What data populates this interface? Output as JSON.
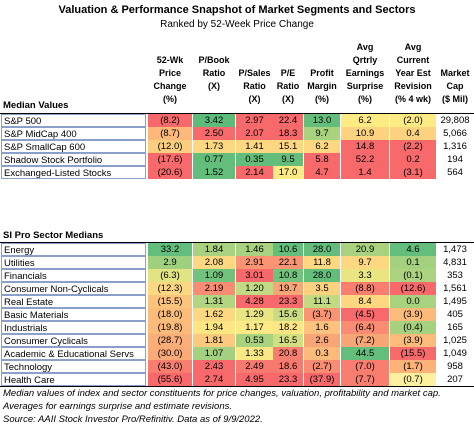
{
  "title": "Valuation & Performance Snapshot of Market Segments and Sectors",
  "subtitle": "Ranked by 52-Week Price Change",
  "chart_data": {
    "type": "table",
    "columns": [
      "52-Wk Price Change (%)",
      "P/Book Ratio (X)",
      "P/Sales Ratio (X)",
      "P/E Ratio (X)",
      "Profit Margin (%)",
      "Avg Qtrly Earnings Surprise (%)",
      "Avg Current Year Est Revision (% 4 wk)",
      "Market Cap ($ Mil)"
    ],
    "sections": [
      {
        "label": "Median Values",
        "rows": [
          {
            "name": "S&P 500",
            "values": [
              "(8.2)",
              "3.42",
              "2.97",
              "22.4",
              "13.0",
              "6.2",
              "(2.0)",
              "29,808"
            ]
          },
          {
            "name": "S&P MidCap 400",
            "values": [
              "(8.7)",
              "2.50",
              "2.07",
              "18.3",
              "9.7",
              "10.9",
              "0.4",
              "5,066"
            ]
          },
          {
            "name": "S&P SmallCap 600",
            "values": [
              "(12.0)",
              "1.73",
              "1.41",
              "15.1",
              "6.2",
              "14.8",
              "(2.2)",
              "1,316"
            ]
          },
          {
            "name": "Shadow Stock Portfolio",
            "values": [
              "(17.6)",
              "0.77",
              "0.35",
              "9.5",
              "5.8",
              "52.2",
              "0.2",
              "194"
            ]
          },
          {
            "name": "Exchanged-Listed Stocks",
            "values": [
              "(20.6)",
              "1.52",
              "2.14",
              "17.0",
              "4.7",
              "1.4",
              "(3.1)",
              "564"
            ]
          }
        ]
      },
      {
        "label": "SI Pro Sector Medians",
        "rows": [
          {
            "name": "Energy",
            "values": [
              "33.2",
              "1.84",
              "1.46",
              "10.6",
              "28.0",
              "20.9",
              "4.6",
              "1,473"
            ]
          },
          {
            "name": "Utilities",
            "values": [
              "2.9",
              "2.08",
              "2.91",
              "22.1",
              "11.8",
              "9.7",
              "0.1",
              "4,831"
            ]
          },
          {
            "name": "Financials",
            "values": [
              "(6.3)",
              "1.09",
              "3.01",
              "10.8",
              "28.0",
              "3.3",
              "(0.1)",
              "353"
            ]
          },
          {
            "name": "Consumer Non-Cyclicals",
            "values": [
              "(12.3)",
              "2.19",
              "1.20",
              "19.7",
              "3.5",
              "(8.8)",
              "(12.6)",
              "1,561"
            ]
          },
          {
            "name": "Real Estate",
            "values": [
              "(15.5)",
              "1.31",
              "4.28",
              "23.3",
              "11.1",
              "8.4",
              "0.0",
              "1,495"
            ]
          },
          {
            "name": "Basic Materials",
            "values": [
              "(18.0)",
              "1.62",
              "1.29",
              "15.6",
              "(3.7)",
              "(4.5)",
              "(3.9)",
              "405"
            ]
          },
          {
            "name": "Industrials",
            "values": [
              "(19.8)",
              "1.94",
              "1.17",
              "18.2",
              "1.6",
              "(6.4)",
              "(0.4)",
              "165"
            ]
          },
          {
            "name": "Consumer Cyclicals",
            "values": [
              "(28.7)",
              "1.81",
              "0.53",
              "16.5",
              "2.6",
              "(7.2)",
              "(3.9)",
              "1,025"
            ]
          },
          {
            "name": "Academic & Educational Servs",
            "values": [
              "(30.0)",
              "1.07",
              "1.33",
              "20.8",
              "0.3",
              "44.5",
              "(15.5)",
              "1,049"
            ]
          },
          {
            "name": "Technology",
            "values": [
              "(43.0)",
              "2.43",
              "2.49",
              "18.6",
              "(2.7)",
              "(7.0)",
              "(1.7)",
              "958"
            ]
          },
          {
            "name": "Health Care",
            "values": [
              "(55.6)",
              "2.74",
              "4.95",
              "23.3",
              "(37.9)",
              "(7.7)",
              "(0.7)",
              "207"
            ]
          }
        ]
      }
    ]
  },
  "headers": [
    "52-Wk\nPrice\nChange\n(%)",
    "P/Book\nRatio\n(X)",
    "P/Sales\nRatio\n(X)",
    "P/E\nRatio\n(X)",
    "Profit\nMargin\n(%)",
    "Avg\nQrtrly\nEarnings\nSurprise\n(%)",
    "Avg\nCurrent\nYear Est\nRevision\n(% 4 wk)",
    "Market\nCap\n($ Mil)"
  ],
  "colors": [
    [
      "#f8696b",
      "#5ebc7b",
      "#f8696b",
      "#f8696b",
      "#63be7b",
      "#ffeb84",
      "#ffeb84",
      null
    ],
    [
      "#fdb87a",
      "#f8696b",
      "#f8696b",
      "#f8696b",
      "#a9d27f",
      "#fdd37f",
      "#fdd37f",
      null
    ],
    [
      "#fbcf7f",
      "#fed881",
      "#fed881",
      "#fed881",
      "#fed881",
      "#f8696b",
      "#f8696b",
      null
    ],
    [
      "#f8696b",
      "#63be7b",
      "#63be7b",
      "#63be7b",
      "#f8696b",
      "#f8696b",
      "#f8696b",
      null
    ],
    [
      "#f8696b",
      "#63be7b",
      "#f8696b",
      "#ffeb84",
      "#f8696b",
      "#f8696b",
      "#f8696b",
      null
    ],
    [
      "#63be7b",
      "#a8d27f",
      "#a8d27f",
      "#63be7b",
      "#63be7b",
      "#a9d27f",
      "#63be7b",
      null
    ],
    [
      "#9ed07e",
      "#fed881",
      "#fa9473",
      "#fa9473",
      "#fed881",
      "#fed881",
      "#a4d17f",
      null
    ],
    [
      "#e2e383",
      "#70c27c",
      "#f8696b",
      "#70c27c",
      "#63be7b",
      "#e9e583",
      "#abd380",
      null
    ],
    [
      "#fdd883",
      "#f98c72",
      "#c2da81",
      "#f9a676",
      "#fdd17f",
      "#f97e6f",
      "#f8696b",
      null
    ],
    [
      "#fcc37d",
      "#b1d580",
      "#f8696b",
      "#f8696b",
      "#c2da81",
      "#fed881",
      "#a9d27f",
      null
    ],
    [
      "#fcbd7b",
      "#fed881",
      "#e9e583",
      "#c9dc81",
      "#fa9473",
      "#f8696b",
      "#fcbb7a",
      null
    ],
    [
      "#fcbb7a",
      "#fee683",
      "#feea84",
      "#fee683",
      "#fdc27d",
      "#f98c72",
      "#a6d17f",
      null
    ],
    [
      "#fcae78",
      "#fcca7e",
      "#a9d27f",
      "#d1de82",
      "#f9a676",
      "#f9a676",
      "#fcbb7a",
      null
    ],
    [
      "#fcaa77",
      "#a4d17f",
      "#f9e883",
      "#f97e6f",
      "#fcbb7a",
      "#63be7b",
      "#f8696b",
      null
    ],
    [
      "#f97e6f",
      "#f8696b",
      "#f8796e",
      "#f8796e",
      "#f98c72",
      "#f97e6f",
      "#fcb279",
      null
    ],
    [
      "#f8696b",
      "#f8696b",
      "#f8696b",
      "#f8696b",
      "#f8696b",
      "#f97e6f",
      "#fff0a0",
      null
    ]
  ],
  "footnotes": [
    "Median values of index and sector constituents for price changes, valuation, profitability and market cap.",
    "Averages for earnings surprise and estimate revisions.",
    "Source: AAII Stock Investor Pro/Refinitiv. Data as of 9/9/2022."
  ]
}
